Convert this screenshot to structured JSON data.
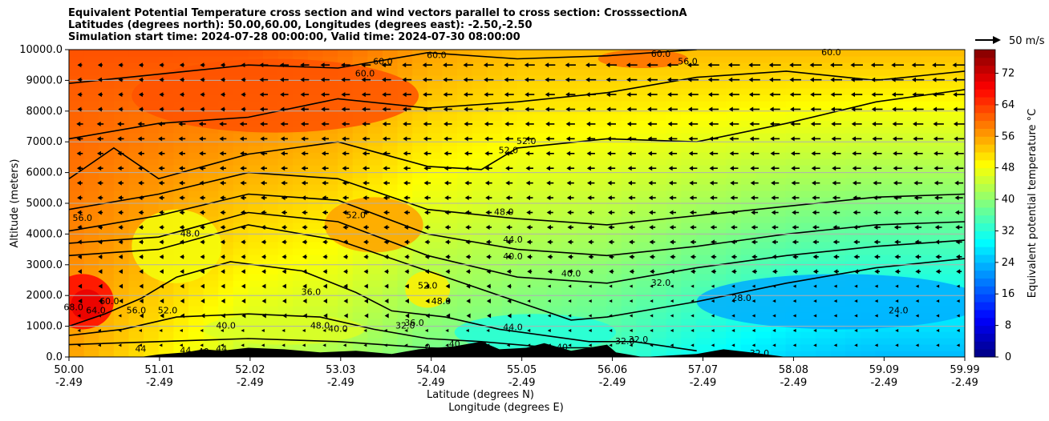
{
  "chart_data": {
    "type": "heatmap",
    "title_lines": [
      "Equivalent Potential Temperature cross section and wind vectors parallel to cross section: CrosssectionA",
      "Latitudes (degrees north): 50.00,60.00, Longitudes (degrees east): -2.50,-2.50",
      "Simulation start time: 2024-07-28 00:00:00, Valid time: 2024-07-30 08:00:00"
    ],
    "xlabel_lines": [
      "Latitude (degrees N)",
      "Longitude (degrees E)"
    ],
    "ylabel": "Altitude (meters)",
    "x_ticks": [
      {
        "lat": "50.00",
        "lon": "-2.49"
      },
      {
        "lat": "51.01",
        "lon": "-2.49"
      },
      {
        "lat": "52.02",
        "lon": "-2.49"
      },
      {
        "lat": "53.03",
        "lon": "-2.49"
      },
      {
        "lat": "54.04",
        "lon": "-2.49"
      },
      {
        "lat": "55.05",
        "lon": "-2.49"
      },
      {
        "lat": "56.06",
        "lon": "-2.49"
      },
      {
        "lat": "57.07",
        "lon": "-2.49"
      },
      {
        "lat": "58.08",
        "lon": "-2.49"
      },
      {
        "lat": "59.09",
        "lon": "-2.49"
      },
      {
        "lat": "59.99",
        "lon": "-2.49"
      }
    ],
    "xlim": [
      50.0,
      59.99
    ],
    "y_ticks": [
      "0.0",
      "1000.0",
      "2000.0",
      "3000.0",
      "4000.0",
      "5000.0",
      "6000.0",
      "7000.0",
      "8000.0",
      "9000.0",
      "10000.0"
    ],
    "ylim": [
      0,
      10000
    ],
    "grid": "horizontal",
    "colorbar": {
      "label": "Equivalent potential temperature $^\\circ$C",
      "ticks": [
        "0",
        "8",
        "16",
        "24",
        "32",
        "40",
        "48",
        "56",
        "64",
        "72"
      ],
      "range": [
        0,
        78
      ],
      "colormap": "jet"
    },
    "quiver_key": "50 m/s",
    "field_profile": [
      {
        "lat": 50.0,
        "theta_surface": 56,
        "theta_top": 62
      },
      {
        "lat": 51.0,
        "theta_surface": 50,
        "theta_top": 62
      },
      {
        "lat": 52.0,
        "theta_surface": 44,
        "theta_top": 62
      },
      {
        "lat": 53.0,
        "theta_surface": 42,
        "theta_top": 60
      },
      {
        "lat": 54.0,
        "theta_surface": 38,
        "theta_top": 56
      },
      {
        "lat": 55.0,
        "theta_surface": 36,
        "theta_top": 54
      },
      {
        "lat": 56.0,
        "theta_surface": 34,
        "theta_top": 54
      },
      {
        "lat": 57.0,
        "theta_surface": 30,
        "theta_top": 54
      },
      {
        "lat": 58.0,
        "theta_surface": 26,
        "theta_top": 54
      },
      {
        "lat": 59.0,
        "theta_surface": 24,
        "theta_top": 54
      },
      {
        "lat": 59.99,
        "theta_surface": 24,
        "theta_top": 54
      }
    ],
    "contour_labels": [
      {
        "text": "60.0",
        "lat": 53.3,
        "alt": 9200
      },
      {
        "text": "60.0",
        "lat": 53.5,
        "alt": 9600
      },
      {
        "text": "60.0",
        "lat": 54.1,
        "alt": 9800
      },
      {
        "text": "60.0",
        "lat": 56.6,
        "alt": 9850
      },
      {
        "text": "56.0",
        "lat": 56.9,
        "alt": 9600
      },
      {
        "text": "60.0",
        "lat": 58.5,
        "alt": 9900
      },
      {
        "text": "52.0",
        "lat": 54.9,
        "alt": 6700
      },
      {
        "text": "52.0",
        "lat": 55.1,
        "alt": 7000
      },
      {
        "text": "56.0",
        "lat": 50.15,
        "alt": 4500
      },
      {
        "text": "48.0",
        "lat": 51.35,
        "alt": 4000
      },
      {
        "text": "52.0",
        "lat": 53.2,
        "alt": 4600
      },
      {
        "text": "48.0",
        "lat": 54.85,
        "alt": 4700
      },
      {
        "text": "44.0",
        "lat": 54.95,
        "alt": 3800
      },
      {
        "text": "40.0",
        "lat": 54.95,
        "alt": 3250
      },
      {
        "text": "40.0",
        "lat": 55.6,
        "alt": 2700
      },
      {
        "text": "32.0",
        "lat": 56.6,
        "alt": 2400
      },
      {
        "text": "28.0",
        "lat": 57.5,
        "alt": 1900
      },
      {
        "text": "24.0",
        "lat": 59.25,
        "alt": 1500
      },
      {
        "text": "68.0",
        "lat": 50.05,
        "alt": 1600
      },
      {
        "text": "64.0",
        "lat": 50.3,
        "alt": 1500
      },
      {
        "text": "60.0",
        "lat": 50.45,
        "alt": 1800
      },
      {
        "text": "56.0",
        "lat": 50.75,
        "alt": 1500
      },
      {
        "text": "52.0",
        "lat": 51.1,
        "alt": 1500
      },
      {
        "text": "36.0",
        "lat": 52.7,
        "alt": 2100
      },
      {
        "text": "52.0",
        "lat": 54.0,
        "alt": 2300
      },
      {
        "text": "48.0",
        "lat": 54.15,
        "alt": 1800
      },
      {
        "text": "48.0",
        "lat": 52.8,
        "alt": 1000
      },
      {
        "text": "40.0",
        "lat": 51.75,
        "alt": 1000
      },
      {
        "text": "40.0",
        "lat": 53.0,
        "alt": 900
      },
      {
        "text": "32.0",
        "lat": 53.75,
        "alt": 1000
      },
      {
        "text": "36.0",
        "lat": 53.85,
        "alt": 1100
      },
      {
        "text": "44.0",
        "lat": 54.95,
        "alt": 950
      },
      {
        "text": "32.0",
        "lat": 56.2,
        "alt": 500
      },
      {
        "text": "32.0",
        "lat": 56.35,
        "alt": 550
      },
      {
        "text": "32.0",
        "lat": 57.7,
        "alt": 100
      },
      {
        "text": "44",
        "lat": 50.8,
        "alt": 250
      },
      {
        "text": "44",
        "lat": 51.3,
        "alt": 200
      },
      {
        "text": "40",
        "lat": 51.5,
        "alt": 150
      },
      {
        "text": "44",
        "lat": 51.7,
        "alt": 250
      },
      {
        "text": "40",
        "lat": 54.3,
        "alt": 400
      },
      {
        "text": "40",
        "lat": 54.6,
        "alt": 350
      },
      {
        "text": "40",
        "lat": 55.5,
        "alt": 300
      },
      {
        "text": "0",
        "lat": 54.0,
        "alt": 300
      }
    ]
  }
}
